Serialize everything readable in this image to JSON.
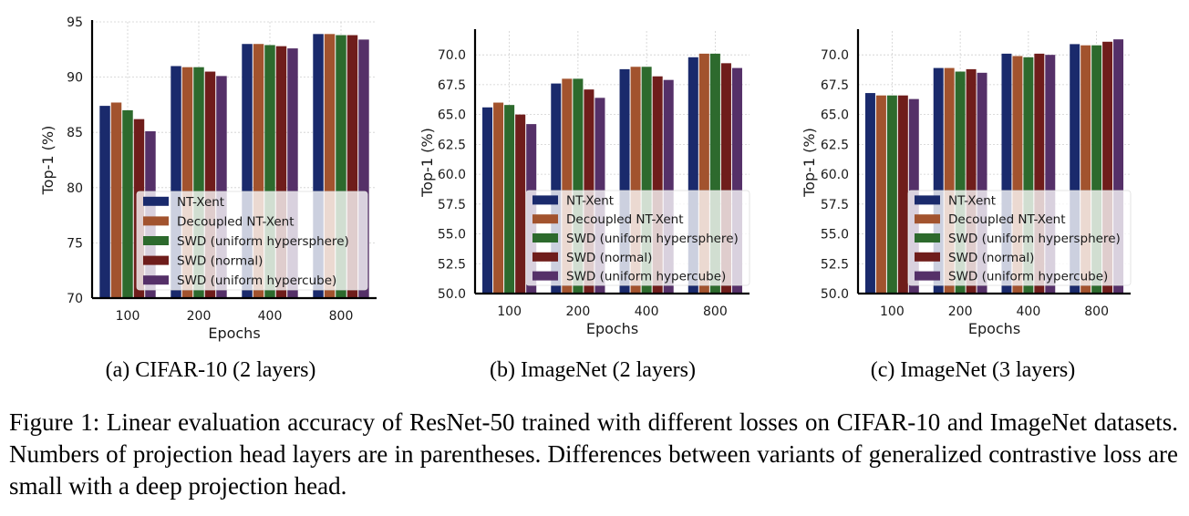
{
  "colors": {
    "NT-Xent": "#1a2a6c",
    "Decoupled NT-Xent": "#a2532e",
    "SWD (uniform hypersphere)": "#2d6a2d",
    "SWD (normal)": "#6f1d1b",
    "SWD (uniform hypercube)": "#553068"
  },
  "figure": {
    "caption": "Figure 1: Linear evaluation accuracy of ResNet-50 trained with different losses on CIFAR-10 and ImageNet datasets. Numbers of projection head layers are in parentheses. Differences between variants of generalized contrastive loss are small with a deep projection head."
  },
  "chart_data": [
    {
      "id": "a",
      "type": "bar",
      "subcaption": "(a) CIFAR-10 (2 layers)",
      "xlabel": "Epochs",
      "ylabel": "Top-1 (%)",
      "ylim": [
        70,
        95
      ],
      "yticks": [
        "70",
        "75",
        "80",
        "85",
        "90",
        "95"
      ],
      "grid": true,
      "legend_position": "lower-right",
      "categories": [
        "100",
        "200",
        "400",
        "800"
      ],
      "series": [
        {
          "name": "NT-Xent",
          "values": [
            87.4,
            91.0,
            93.0,
            93.9
          ]
        },
        {
          "name": "Decoupled NT-Xent",
          "values": [
            87.7,
            90.9,
            93.0,
            93.9
          ]
        },
        {
          "name": "SWD (uniform hypersphere)",
          "values": [
            87.0,
            90.9,
            92.9,
            93.8
          ]
        },
        {
          "name": "SWD (normal)",
          "values": [
            86.2,
            90.5,
            92.8,
            93.8
          ]
        },
        {
          "name": "SWD (uniform hypercube)",
          "values": [
            85.1,
            90.1,
            92.6,
            93.4
          ]
        }
      ]
    },
    {
      "id": "b",
      "type": "bar",
      "subcaption": "(b) ImageNet (2 layers)",
      "xlabel": "Epochs",
      "ylabel": "Top-1 (%)",
      "ylim": [
        50,
        72
      ],
      "yticks": [
        "50.0",
        "52.5",
        "55.0",
        "57.5",
        "60.0",
        "62.5",
        "65.0",
        "67.5",
        "70.0"
      ],
      "grid": true,
      "legend_position": "lower-right",
      "categories": [
        "100",
        "200",
        "400",
        "800"
      ],
      "series": [
        {
          "name": "NT-Xent",
          "values": [
            65.6,
            67.6,
            68.8,
            69.8
          ]
        },
        {
          "name": "Decoupled NT-Xent",
          "values": [
            66.0,
            68.0,
            69.0,
            70.1
          ]
        },
        {
          "name": "SWD (uniform hypersphere)",
          "values": [
            65.8,
            68.0,
            69.0,
            70.1
          ]
        },
        {
          "name": "SWD (normal)",
          "values": [
            65.0,
            67.1,
            68.2,
            69.3
          ]
        },
        {
          "name": "SWD (uniform hypercube)",
          "values": [
            64.2,
            66.4,
            67.9,
            68.9
          ]
        }
      ]
    },
    {
      "id": "c",
      "type": "bar",
      "subcaption": "(c) ImageNet (3 layers)",
      "xlabel": "Epochs",
      "ylabel": "Top-1 (%)",
      "ylim": [
        50,
        72
      ],
      "yticks": [
        "50.0",
        "52.5",
        "55.0",
        "57.5",
        "60.0",
        "62.5",
        "65.0",
        "67.5",
        "70.0"
      ],
      "grid": true,
      "legend_position": "lower-right",
      "categories": [
        "100",
        "200",
        "400",
        "800"
      ],
      "series": [
        {
          "name": "NT-Xent",
          "values": [
            66.8,
            68.9,
            70.1,
            70.9
          ]
        },
        {
          "name": "Decoupled NT-Xent",
          "values": [
            66.6,
            68.9,
            69.9,
            70.8
          ]
        },
        {
          "name": "SWD (uniform hypersphere)",
          "values": [
            66.6,
            68.6,
            69.8,
            70.8
          ]
        },
        {
          "name": "SWD (normal)",
          "values": [
            66.6,
            68.8,
            70.1,
            71.1
          ]
        },
        {
          "name": "SWD (uniform hypercube)",
          "values": [
            66.3,
            68.5,
            70.0,
            71.3
          ]
        }
      ]
    }
  ]
}
